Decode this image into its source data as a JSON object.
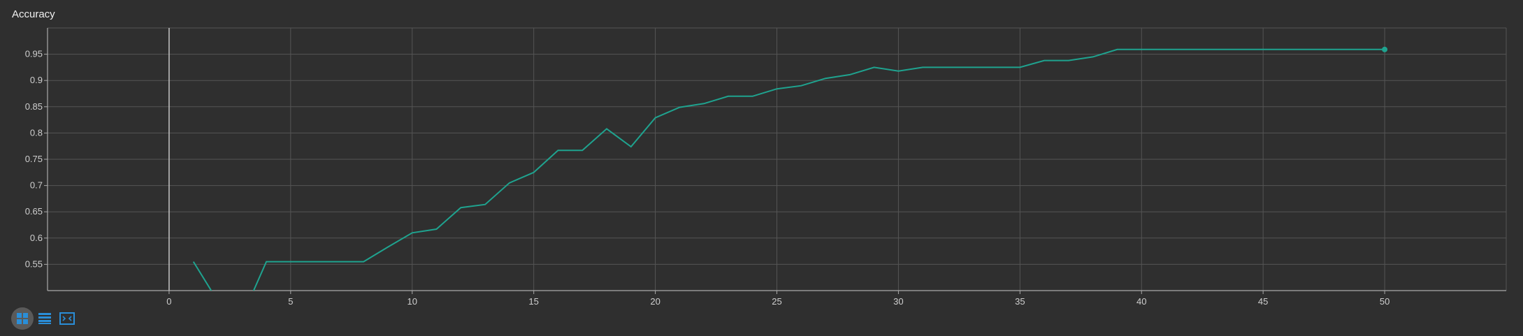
{
  "panel": {
    "title": "Accuracy"
  },
  "colors": {
    "line": "#1fa38f",
    "grid": "#555555",
    "axis": "#aaaaaa",
    "toolbar_icon": "#2a8ed8",
    "toolbar_active_bg": "#5a5a5a"
  },
  "toolbar": [
    {
      "name": "grid-view-icon",
      "active": true
    },
    {
      "name": "list-view-icon",
      "active": false
    },
    {
      "name": "fit-to-screen-icon",
      "active": false
    }
  ],
  "chart_data": {
    "type": "line",
    "title": "Accuracy",
    "xlabel": "",
    "ylabel": "",
    "xlim": [
      -5,
      55
    ],
    "ylim": [
      0.5,
      1.0
    ],
    "x_ticks": [
      0,
      5,
      10,
      15,
      20,
      25,
      30,
      35,
      40,
      45,
      50
    ],
    "y_ticks": [
      0.55,
      0.6,
      0.65,
      0.7,
      0.75,
      0.8,
      0.85,
      0.9,
      0.95
    ],
    "y_tick_labels": [
      "0.55",
      "0.6",
      "0.65",
      "0.7",
      "0.75",
      "0.8",
      "0.85",
      "0.9",
      "0.95"
    ],
    "grid": true,
    "series": [
      {
        "x": [
          1,
          2,
          3,
          4,
          5,
          6,
          7,
          8,
          9,
          10,
          11,
          12,
          13,
          14,
          15,
          16,
          17,
          18,
          19,
          20,
          21,
          22,
          23,
          24,
          25,
          26,
          27,
          28,
          29,
          30,
          31,
          32,
          33,
          34,
          35,
          36,
          37,
          38,
          39,
          40,
          41,
          42,
          43,
          44,
          45,
          46,
          47,
          48,
          49,
          50
        ],
        "y": [
          0.555,
          0.48,
          0.45,
          0.555,
          0.555,
          0.555,
          0.555,
          0.555,
          0.583,
          0.61,
          0.617,
          0.658,
          0.664,
          0.705,
          0.725,
          0.767,
          0.767,
          0.808,
          0.774,
          0.829,
          0.849,
          0.856,
          0.87,
          0.87,
          0.884,
          0.89,
          0.904,
          0.911,
          0.925,
          0.918,
          0.925,
          0.925,
          0.925,
          0.925,
          0.925,
          0.938,
          0.938,
          0.945,
          0.959,
          0.959,
          0.959,
          0.959,
          0.959,
          0.959,
          0.959,
          0.959,
          0.959,
          0.959,
          0.959,
          0.959
        ]
      }
    ]
  }
}
